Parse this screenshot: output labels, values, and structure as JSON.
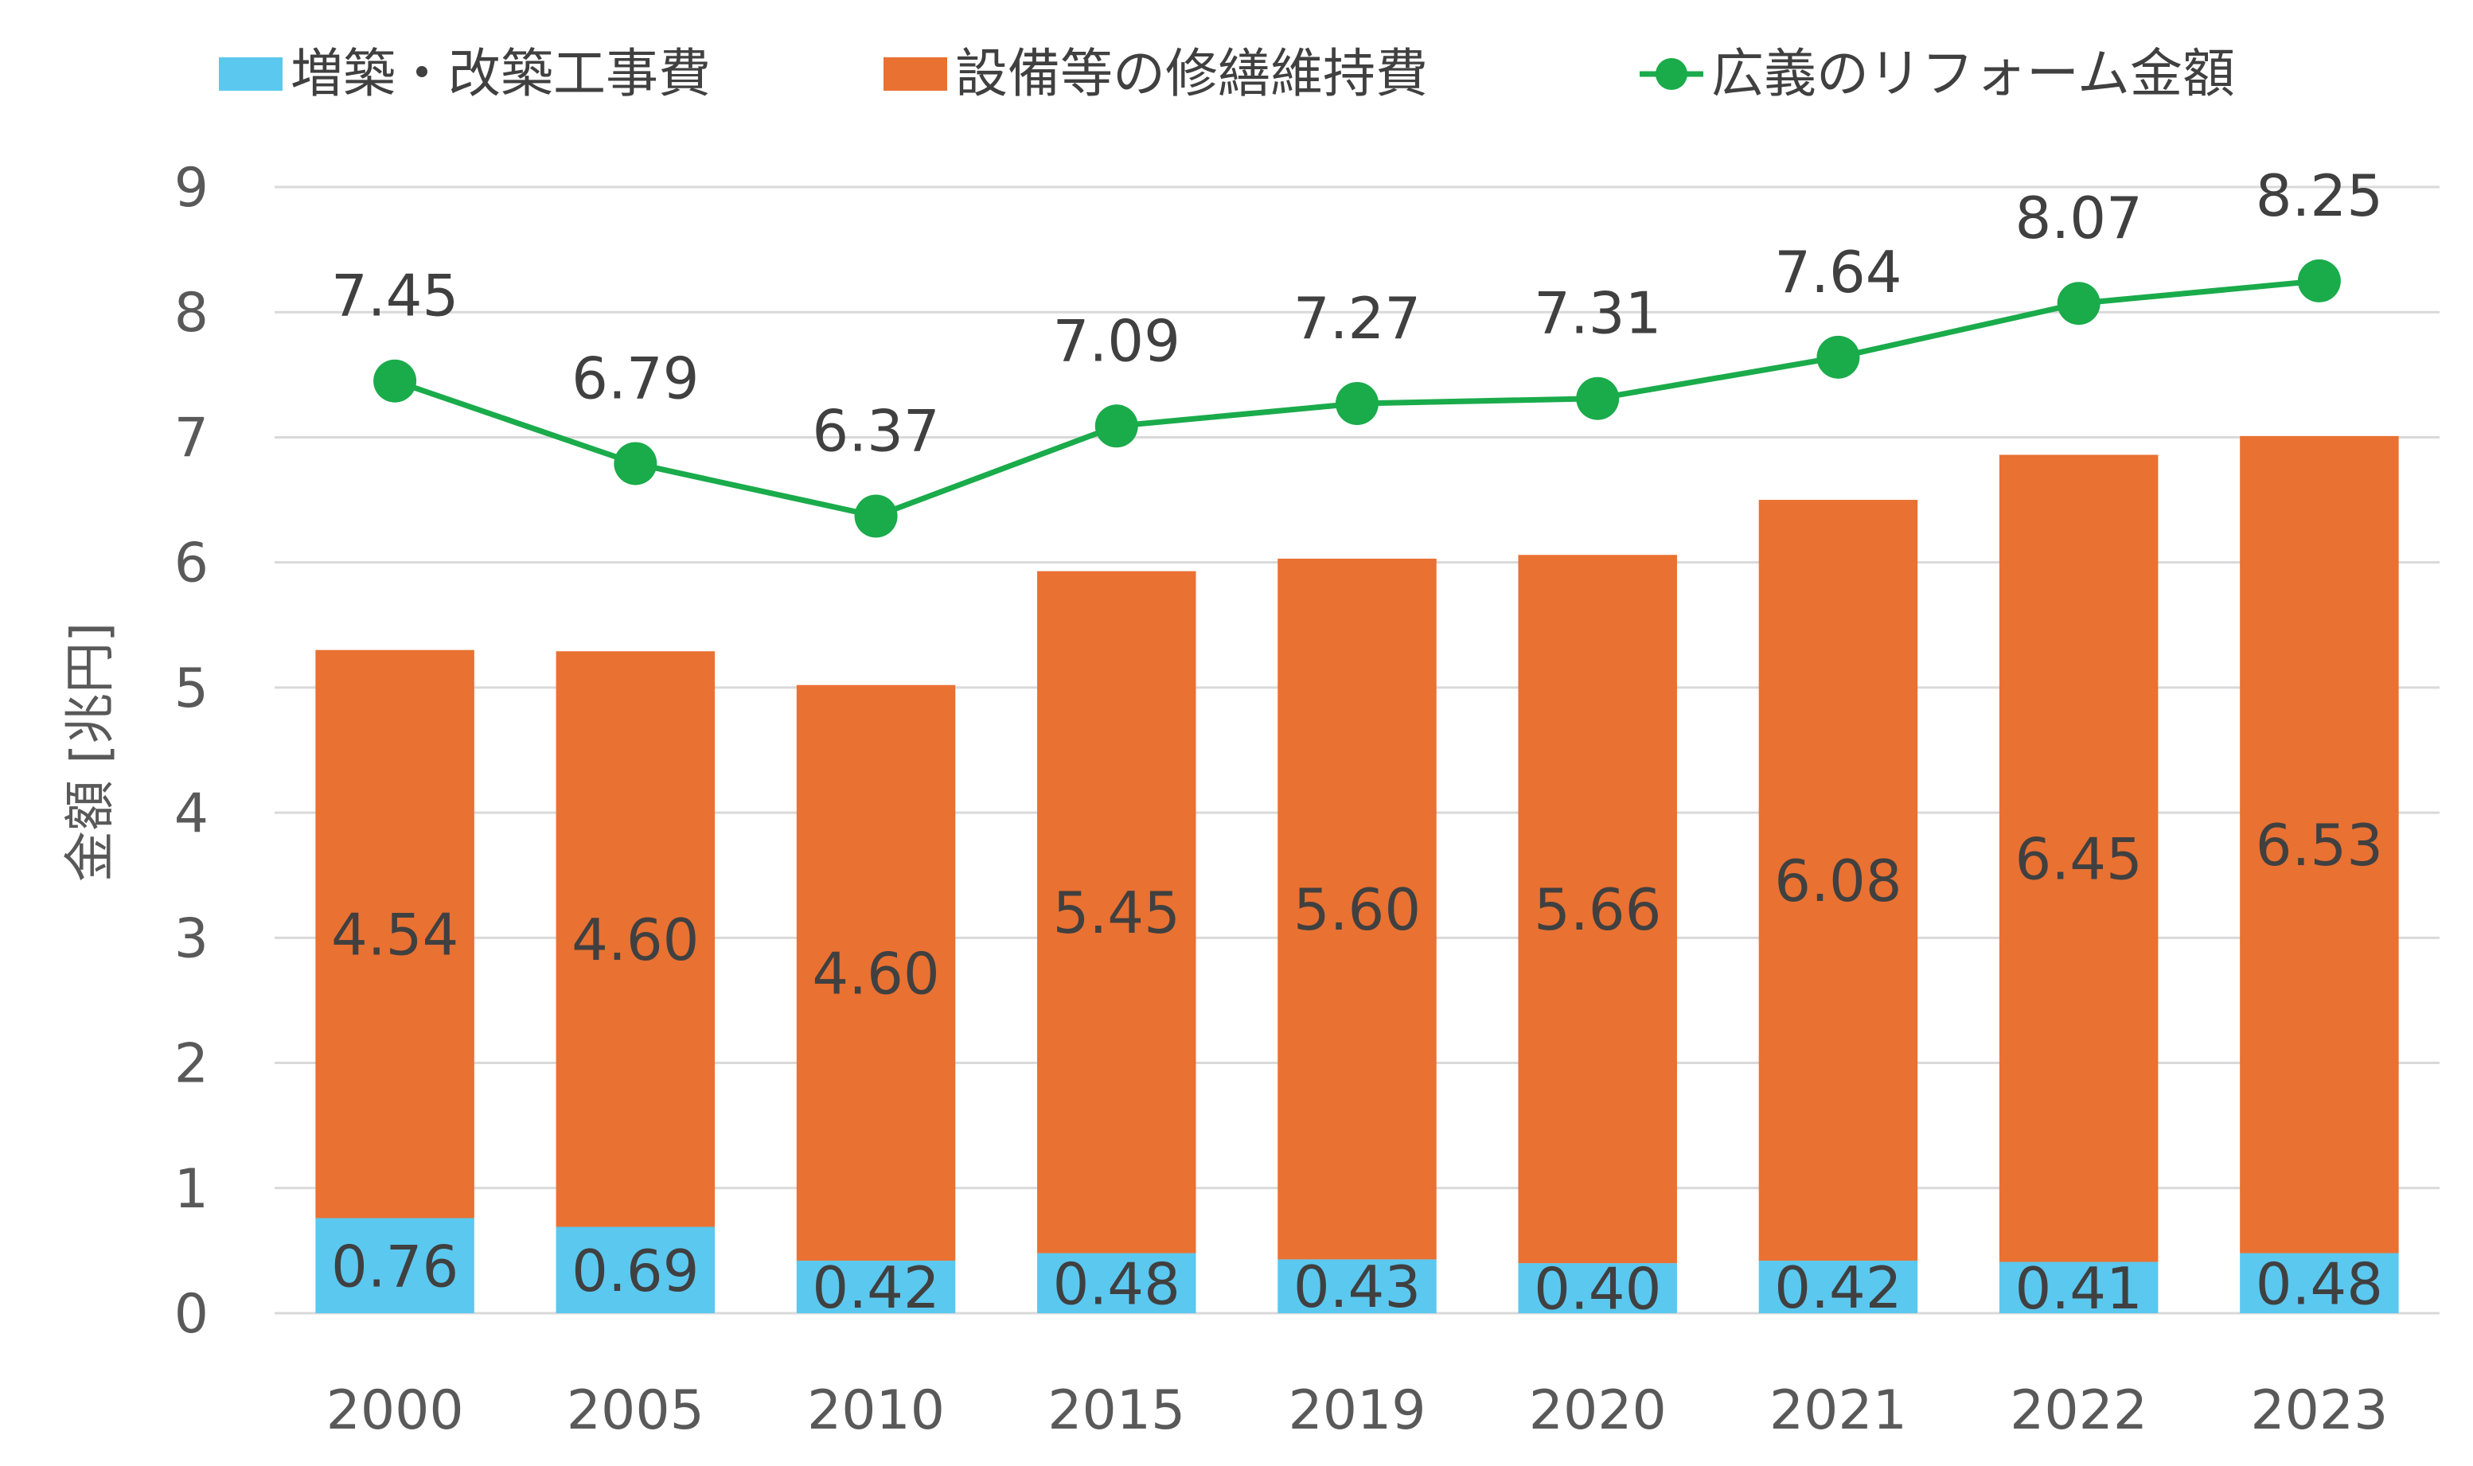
{
  "chart_data": {
    "type": "bar",
    "stacked": true,
    "categories": [
      "2000",
      "2005",
      "2010",
      "2015",
      "2019",
      "2020",
      "2021",
      "2022",
      "2023"
    ],
    "series": [
      {
        "name": "増築・改築工事費",
        "kind": "bar",
        "color": "#5bc8f0",
        "values": [
          0.76,
          0.69,
          0.42,
          0.48,
          0.43,
          0.4,
          0.42,
          0.41,
          0.48
        ],
        "labels": [
          "0.76",
          "0.69",
          "0.42",
          "0.48",
          "0.43",
          "0.40",
          "0.42",
          "0.41",
          "0.48"
        ]
      },
      {
        "name": "設備等の修繕維持費",
        "kind": "bar",
        "color": "#e97132",
        "values": [
          4.54,
          4.6,
          4.6,
          5.45,
          5.6,
          5.66,
          6.08,
          6.45,
          6.53
        ],
        "labels": [
          "4.54",
          "4.60",
          "4.60",
          "5.45",
          "5.60",
          "5.66",
          "6.08",
          "6.45",
          "6.53"
        ]
      },
      {
        "name": "広義のリフォーム金額",
        "kind": "line",
        "color": "#1aab4b",
        "values": [
          7.45,
          6.79,
          6.37,
          7.09,
          7.27,
          7.31,
          7.64,
          8.07,
          8.25
        ],
        "labels": [
          "7.45",
          "6.79",
          "6.37",
          "7.09",
          "7.27",
          "7.31",
          "7.64",
          "8.07",
          "8.25"
        ]
      }
    ],
    "ylabel": "金額 [兆円]",
    "ylim": [
      0,
      9
    ],
    "yticks": [
      "0",
      "1",
      "2",
      "3",
      "4",
      "5",
      "6",
      "7",
      "8",
      "9"
    ],
    "grid": true,
    "legend_position": "top"
  }
}
